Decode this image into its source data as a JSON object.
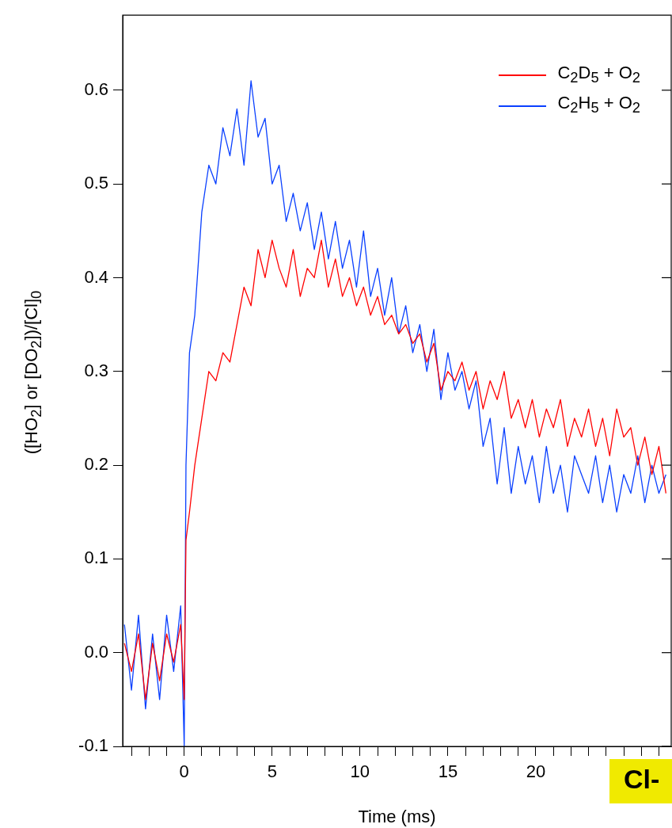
{
  "chart_data": {
    "type": "line",
    "xlabel": "Time (ms)",
    "ylabel": "([HO$_{2}$] or [DO$_{2}$])/[Cl]$_{0}$",
    "x": [
      -3.4,
      -3.0,
      -2.6,
      -2.2,
      -1.8,
      -1.4,
      -1.0,
      -0.6,
      -0.2,
      0.0,
      0.1,
      0.3,
      0.6,
      1.0,
      1.4,
      1.8,
      2.2,
      2.6,
      3.0,
      3.4,
      3.8,
      4.2,
      4.6,
      5.0,
      5.4,
      5.8,
      6.2,
      6.6,
      7.0,
      7.4,
      7.8,
      8.2,
      8.6,
      9.0,
      9.4,
      9.8,
      10.2,
      10.6,
      11.0,
      11.4,
      11.8,
      12.2,
      12.6,
      13.0,
      13.4,
      13.8,
      14.2,
      14.6,
      15.0,
      15.4,
      15.8,
      16.2,
      16.6,
      17.0,
      17.4,
      17.8,
      18.2,
      18.6,
      19.0,
      19.4,
      19.8,
      20.2,
      20.6,
      21.0,
      21.4,
      21.8,
      22.2,
      22.6,
      23.0,
      23.4,
      23.8,
      24.2,
      24.6,
      25.0,
      25.4,
      25.8,
      26.2,
      26.6,
      27.0,
      27.4
    ],
    "series": [
      {
        "name": "C$_{2}$D$_{5}$ + O$_{2}$",
        "color": "#ff0000",
        "values": [
          0.01,
          -0.02,
          0.02,
          -0.05,
          0.01,
          -0.03,
          0.02,
          -0.01,
          0.03,
          -0.05,
          0.12,
          0.15,
          0.2,
          0.25,
          0.3,
          0.29,
          0.32,
          0.31,
          0.35,
          0.39,
          0.37,
          0.43,
          0.4,
          0.44,
          0.41,
          0.39,
          0.43,
          0.38,
          0.41,
          0.4,
          0.44,
          0.39,
          0.42,
          0.38,
          0.4,
          0.37,
          0.39,
          0.36,
          0.38,
          0.35,
          0.36,
          0.34,
          0.35,
          0.33,
          0.34,
          0.31,
          0.33,
          0.28,
          0.3,
          0.29,
          0.31,
          0.28,
          0.3,
          0.26,
          0.29,
          0.27,
          0.3,
          0.25,
          0.27,
          0.24,
          0.27,
          0.23,
          0.26,
          0.24,
          0.27,
          0.22,
          0.25,
          0.23,
          0.26,
          0.22,
          0.25,
          0.21,
          0.26,
          0.23,
          0.24,
          0.2,
          0.23,
          0.19,
          0.22,
          0.17
        ]
      },
      {
        "name": "C$_{2}$H$_{5}$ + O$_{2}$",
        "color": "#0a40ff",
        "values": [
          0.03,
          -0.04,
          0.04,
          -0.06,
          0.02,
          -0.05,
          0.04,
          -0.02,
          0.05,
          -0.1,
          0.2,
          0.32,
          0.36,
          0.47,
          0.52,
          0.5,
          0.56,
          0.53,
          0.58,
          0.52,
          0.61,
          0.55,
          0.57,
          0.5,
          0.52,
          0.46,
          0.49,
          0.45,
          0.48,
          0.43,
          0.47,
          0.42,
          0.46,
          0.41,
          0.44,
          0.39,
          0.45,
          0.38,
          0.41,
          0.36,
          0.4,
          0.34,
          0.37,
          0.32,
          0.35,
          0.3,
          0.345,
          0.27,
          0.32,
          0.28,
          0.3,
          0.26,
          0.29,
          0.22,
          0.25,
          0.18,
          0.24,
          0.17,
          0.22,
          0.18,
          0.21,
          0.16,
          0.22,
          0.17,
          0.2,
          0.15,
          0.21,
          0.19,
          0.17,
          0.21,
          0.16,
          0.2,
          0.15,
          0.19,
          0.17,
          0.21,
          0.16,
          0.2,
          0.17,
          0.19
        ]
      }
    ],
    "xlim": [
      -3.5,
      27.7
    ],
    "ylim": [
      -0.1,
      0.68
    ],
    "xticks": [
      {
        "value": -3,
        "label": null
      },
      {
        "value": -2,
        "label": null
      },
      {
        "value": -1,
        "label": null
      },
      0,
      {
        "value": 1,
        "label": null
      },
      {
        "value": 2,
        "label": null
      },
      {
        "value": 3,
        "label": null
      },
      {
        "value": 4,
        "label": null
      },
      5,
      {
        "value": 6,
        "label": null
      },
      {
        "value": 7,
        "label": null
      },
      {
        "value": 8,
        "label": null
      },
      {
        "value": 9,
        "label": null
      },
      10,
      {
        "value": 11,
        "label": null
      },
      {
        "value": 12,
        "label": null
      },
      {
        "value": 13,
        "label": null
      },
      {
        "value": 14,
        "label": null
      },
      15,
      {
        "value": 16,
        "label": null
      },
      {
        "value": 17,
        "label": null
      },
      {
        "value": 18,
        "label": null
      },
      {
        "value": 19,
        "label": null
      },
      20,
      {
        "value": 21,
        "label": null
      },
      {
        "value": 22,
        "label": null
      },
      {
        "value": 23,
        "label": null
      },
      {
        "value": 24,
        "label": null
      },
      {
        "value": 25,
        "label": null
      },
      {
        "value": 26,
        "label": null
      },
      {
        "value": 27,
        "label": null
      }
    ],
    "yticks": [
      {
        "value": -0.1,
        "label": "-0.1"
      },
      {
        "value": 0,
        "label": "0.0"
      },
      {
        "value": 0.1,
        "label": "0.1"
      },
      {
        "value": 0.2,
        "label": "0.2"
      },
      {
        "value": 0.3,
        "label": "0.3"
      },
      {
        "value": 0.4,
        "label": "0.4"
      },
      {
        "value": 0.5,
        "label": "0.5"
      },
      {
        "value": 0.6,
        "label": "0.6"
      }
    ],
    "grid": false,
    "legend": "top right",
    "marker": "none",
    "line_style": "solid",
    "annotations": [
      "Cl-"
    ]
  }
}
